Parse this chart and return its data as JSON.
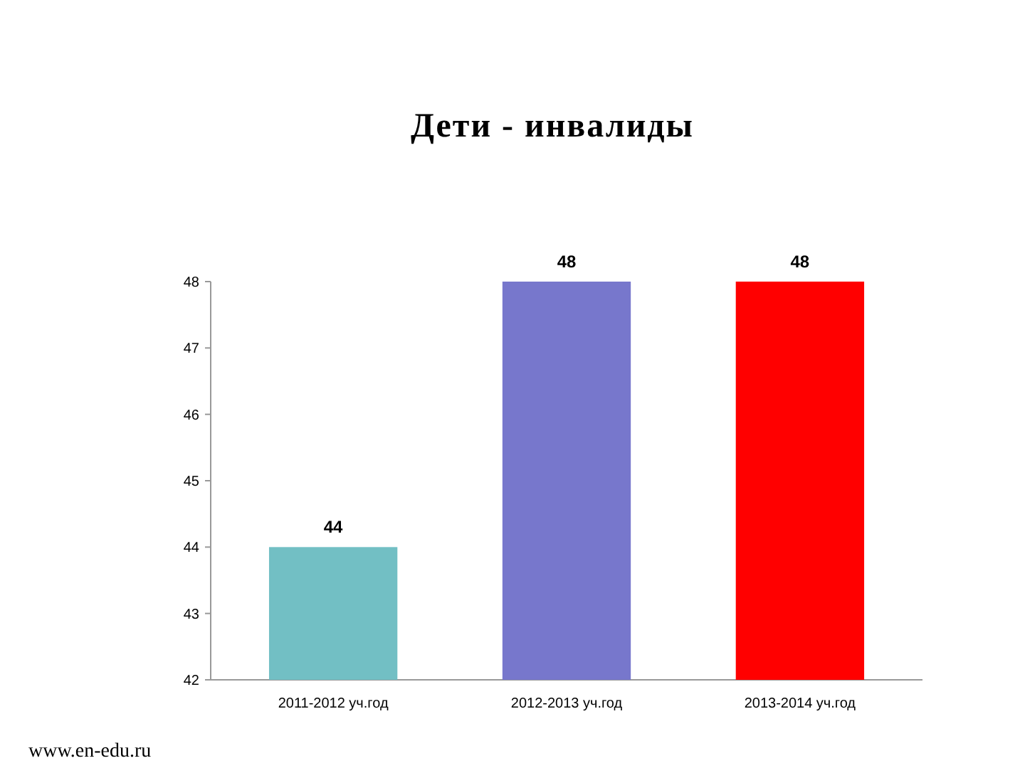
{
  "chart_data": {
    "type": "bar",
    "title": "Дети - инвалиды",
    "categories": [
      "2011-2012 уч.год",
      "2012-2013 уч.год",
      "2013-2014 уч.год"
    ],
    "values": [
      44,
      48,
      48
    ],
    "colors": [
      "#72bfc4",
      "#7777cc",
      "#ff0000"
    ],
    "ylim": [
      42,
      48
    ],
    "yticks": [
      42,
      43,
      44,
      45,
      46,
      47,
      48
    ],
    "data_labels": true,
    "annotations": [
      "www.en-edu.ru"
    ]
  }
}
